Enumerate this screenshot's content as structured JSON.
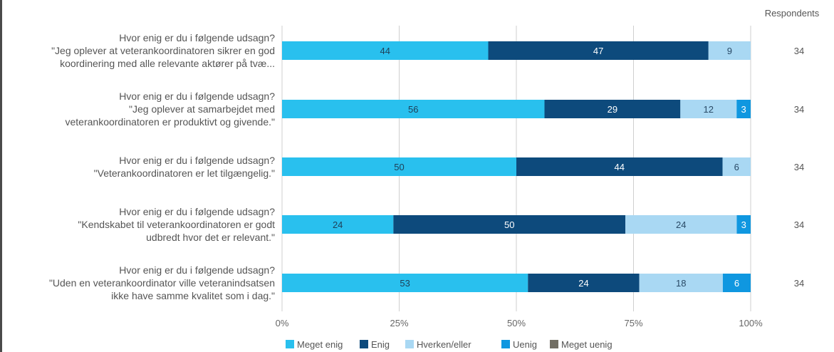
{
  "chart_data": {
    "type": "bar",
    "orientation": "horizontal",
    "stacked": true,
    "categories": [
      [
        "Hvor enig er du i følgende udsagn?",
        "\"Jeg oplever at veterankoordinatoren sikrer en god",
        "koordinering med alle relevante aktører på tvæ..."
      ],
      [
        "Hvor enig er du i følgende udsagn?",
        "\"Jeg oplever at samarbejdet med",
        "veterankoordinatoren er produktivt og givende.\""
      ],
      [
        "Hvor enig er du i følgende udsagn?",
        "\"Veterankoordinatoren er let tilgængelig.\""
      ],
      [
        "Hvor enig er du i følgende udsagn?",
        "\"Kendskabet til veterankoordinatoren er godt",
        "udbredt hvor det er relevant.\""
      ],
      [
        "Hvor enig er du i følgende udsagn?",
        "\"Uden en veterankoordinator ville veteranindsatsen",
        "ikke have samme kvalitet som i dag.\""
      ]
    ],
    "series": [
      {
        "name": "Meget enig",
        "color": "#29c0ee",
        "labelColor": "#1f3f57",
        "values": [
          44,
          56,
          50,
          24,
          53
        ]
      },
      {
        "name": "Enig",
        "color": "#0d4a7c",
        "labelColor": "#ffffff",
        "values": [
          47,
          29,
          44,
          50,
          24
        ]
      },
      {
        "name": "Hverken/eller",
        "color": "#a9d8f3",
        "labelColor": "#2a4a66",
        "values": [
          9,
          12,
          6,
          24,
          18
        ]
      },
      {
        "name": "Uenig",
        "color": "#0f97e0",
        "labelColor": "#ffffff",
        "values": [
          0,
          3,
          0,
          3,
          6
        ]
      },
      {
        "name": "Meget uenig",
        "color": "#716e63",
        "labelColor": "#ffffff",
        "values": [
          0,
          0,
          0,
          0,
          0
        ]
      }
    ],
    "respondents_header": "Respondents",
    "respondents": [
      "34",
      "34",
      "34",
      "34",
      "34"
    ],
    "xlim": [
      0,
      100
    ],
    "xticks": [
      "0%",
      "25%",
      "50%",
      "75%",
      "100%"
    ],
    "grid": true,
    "legend_position": "bottom"
  }
}
